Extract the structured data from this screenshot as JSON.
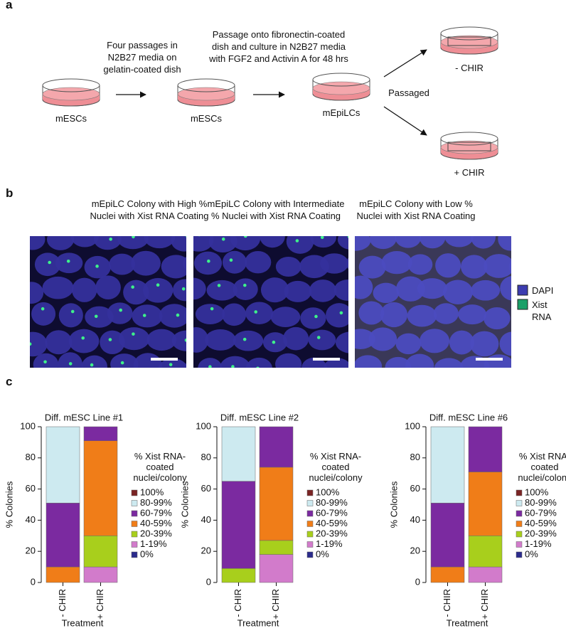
{
  "figure": {
    "panel_a": {
      "label": "a",
      "caption_1": "Four passages in N2B27 media on gelatin-coated dish",
      "caption_2": "Passage onto fibronectin-coated dish and culture in N2B27 media with FGF2 and Activin A for 48 hrs",
      "dish_1": "mESCs",
      "dish_2": "mESCs",
      "dish_3": "mEpiLCs",
      "branch": "Passaged",
      "dish_minus": "- CHIR",
      "dish_plus": "+ CHIR"
    },
    "panel_b": {
      "label": "b",
      "titles": [
        "mEpiLC Colony with High % Nuclei with Xist RNA Coating",
        "mEpiLC Colony with Intermediate % Nuclei with Xist RNA Coating",
        "mEpiLC Colony with Low % Nuclei with Xist RNA Coating"
      ],
      "legend": [
        "DAPI",
        "Xist RNA"
      ]
    },
    "panel_c": {
      "label": "c"
    }
  },
  "chart_data": [
    {
      "type": "bar",
      "stacked": true,
      "title": "Diff. mESC Line #1",
      "ylabel": "% Colonies",
      "xlabel": "Treatment",
      "legend_title": "% Xist RNA-coated nuclei/colony",
      "categories": [
        "- CHIR",
        "+ CHIR"
      ],
      "ylim": [
        0,
        100
      ],
      "yticks": [
        0,
        20,
        40,
        60,
        80,
        100
      ],
      "series": [
        {
          "name": "100%",
          "color": "#7a2424",
          "values": [
            0,
            0
          ]
        },
        {
          "name": "80-99%",
          "color": "#cdeaf0",
          "values": [
            49,
            0
          ]
        },
        {
          "name": "60-79%",
          "color": "#7b2aa0",
          "values": [
            41,
            9
          ]
        },
        {
          "name": "40-59%",
          "color": "#f07d18",
          "values": [
            10,
            61
          ]
        },
        {
          "name": "20-39%",
          "color": "#a8cf1c",
          "values": [
            0,
            20
          ]
        },
        {
          "name": "1-19%",
          "color": "#d27bcb",
          "values": [
            0,
            10
          ]
        },
        {
          "name": "0%",
          "color": "#2b2b8c",
          "values": [
            0,
            0
          ]
        }
      ]
    },
    {
      "type": "bar",
      "stacked": true,
      "title": "Diff. mESC Line #2",
      "ylabel": "% Colonies",
      "xlabel": "Treatment",
      "legend_title": "% Xist RNA-coated nuclei/colony",
      "categories": [
        "- CHIR",
        "+ CHIR"
      ],
      "ylim": [
        0,
        100
      ],
      "yticks": [
        0,
        20,
        40,
        60,
        80,
        100
      ],
      "series": [
        {
          "name": "100%",
          "color": "#7a2424",
          "values": [
            0,
            0
          ]
        },
        {
          "name": "80-99%",
          "color": "#cdeaf0",
          "values": [
            35,
            0
          ]
        },
        {
          "name": "60-79%",
          "color": "#7b2aa0",
          "values": [
            56,
            26
          ]
        },
        {
          "name": "40-59%",
          "color": "#f07d18",
          "values": [
            0,
            47
          ]
        },
        {
          "name": "20-39%",
          "color": "#a8cf1c",
          "values": [
            9,
            9
          ]
        },
        {
          "name": "1-19%",
          "color": "#d27bcb",
          "values": [
            0,
            18
          ]
        },
        {
          "name": "0%",
          "color": "#2b2b8c",
          "values": [
            0,
            0
          ]
        }
      ]
    },
    {
      "type": "bar",
      "stacked": true,
      "title": "Diff. mESC Line #6",
      "ylabel": "% Colonies",
      "xlabel": "Treatment",
      "legend_title": "% Xist RNA-coated nuclei/colony",
      "categories": [
        "- CHIR",
        "+ CHIR"
      ],
      "ylim": [
        0,
        100
      ],
      "yticks": [
        0,
        20,
        40,
        60,
        80,
        100
      ],
      "series": [
        {
          "name": "100%",
          "color": "#7a2424",
          "values": [
            0,
            0
          ]
        },
        {
          "name": "80-99%",
          "color": "#cdeaf0",
          "values": [
            49,
            0
          ]
        },
        {
          "name": "60-79%",
          "color": "#7b2aa0",
          "values": [
            41,
            29
          ]
        },
        {
          "name": "40-59%",
          "color": "#f07d18",
          "values": [
            10,
            41
          ]
        },
        {
          "name": "20-39%",
          "color": "#a8cf1c",
          "values": [
            0,
            20
          ]
        },
        {
          "name": "1-19%",
          "color": "#d27bcb",
          "values": [
            0,
            10
          ]
        },
        {
          "name": "0%",
          "color": "#2b2b8c",
          "values": [
            0,
            0
          ]
        }
      ]
    }
  ]
}
